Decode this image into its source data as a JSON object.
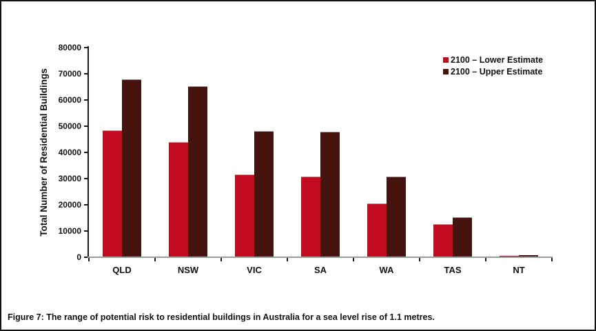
{
  "figure": {
    "caption_prefix": "Figure 7:",
    "caption_text": "The range of potential risk to residential buildings in Australia for a sea level rise of 1.1 metres."
  },
  "chart_data": {
    "type": "bar",
    "title": "",
    "xlabel": "",
    "ylabel": "Total Number of Residential Buildings",
    "categories": [
      "QLD",
      "NSW",
      "VIC",
      "SA",
      "WA",
      "TAS",
      "NT"
    ],
    "series": [
      {
        "name": "2100 – Lower Estimate",
        "color": "#C30B20",
        "values": [
          48200,
          43800,
          31400,
          30600,
          20200,
          12400,
          200
        ]
      },
      {
        "name": "2100 – Upper Estimate",
        "color": "#461410",
        "values": [
          67600,
          65100,
          47900,
          47700,
          30400,
          14900,
          500
        ]
      }
    ],
    "ylim": [
      0,
      80000
    ],
    "yticks": [
      0,
      10000,
      20000,
      30000,
      40000,
      50000,
      60000,
      70000,
      80000
    ],
    "grid": false,
    "legend_position": "top-right",
    "colors": {
      "y_axis": "#1a1a1a",
      "x_axis": "#9c9c9c",
      "frame": "#111111",
      "background": "#fffffd"
    }
  }
}
